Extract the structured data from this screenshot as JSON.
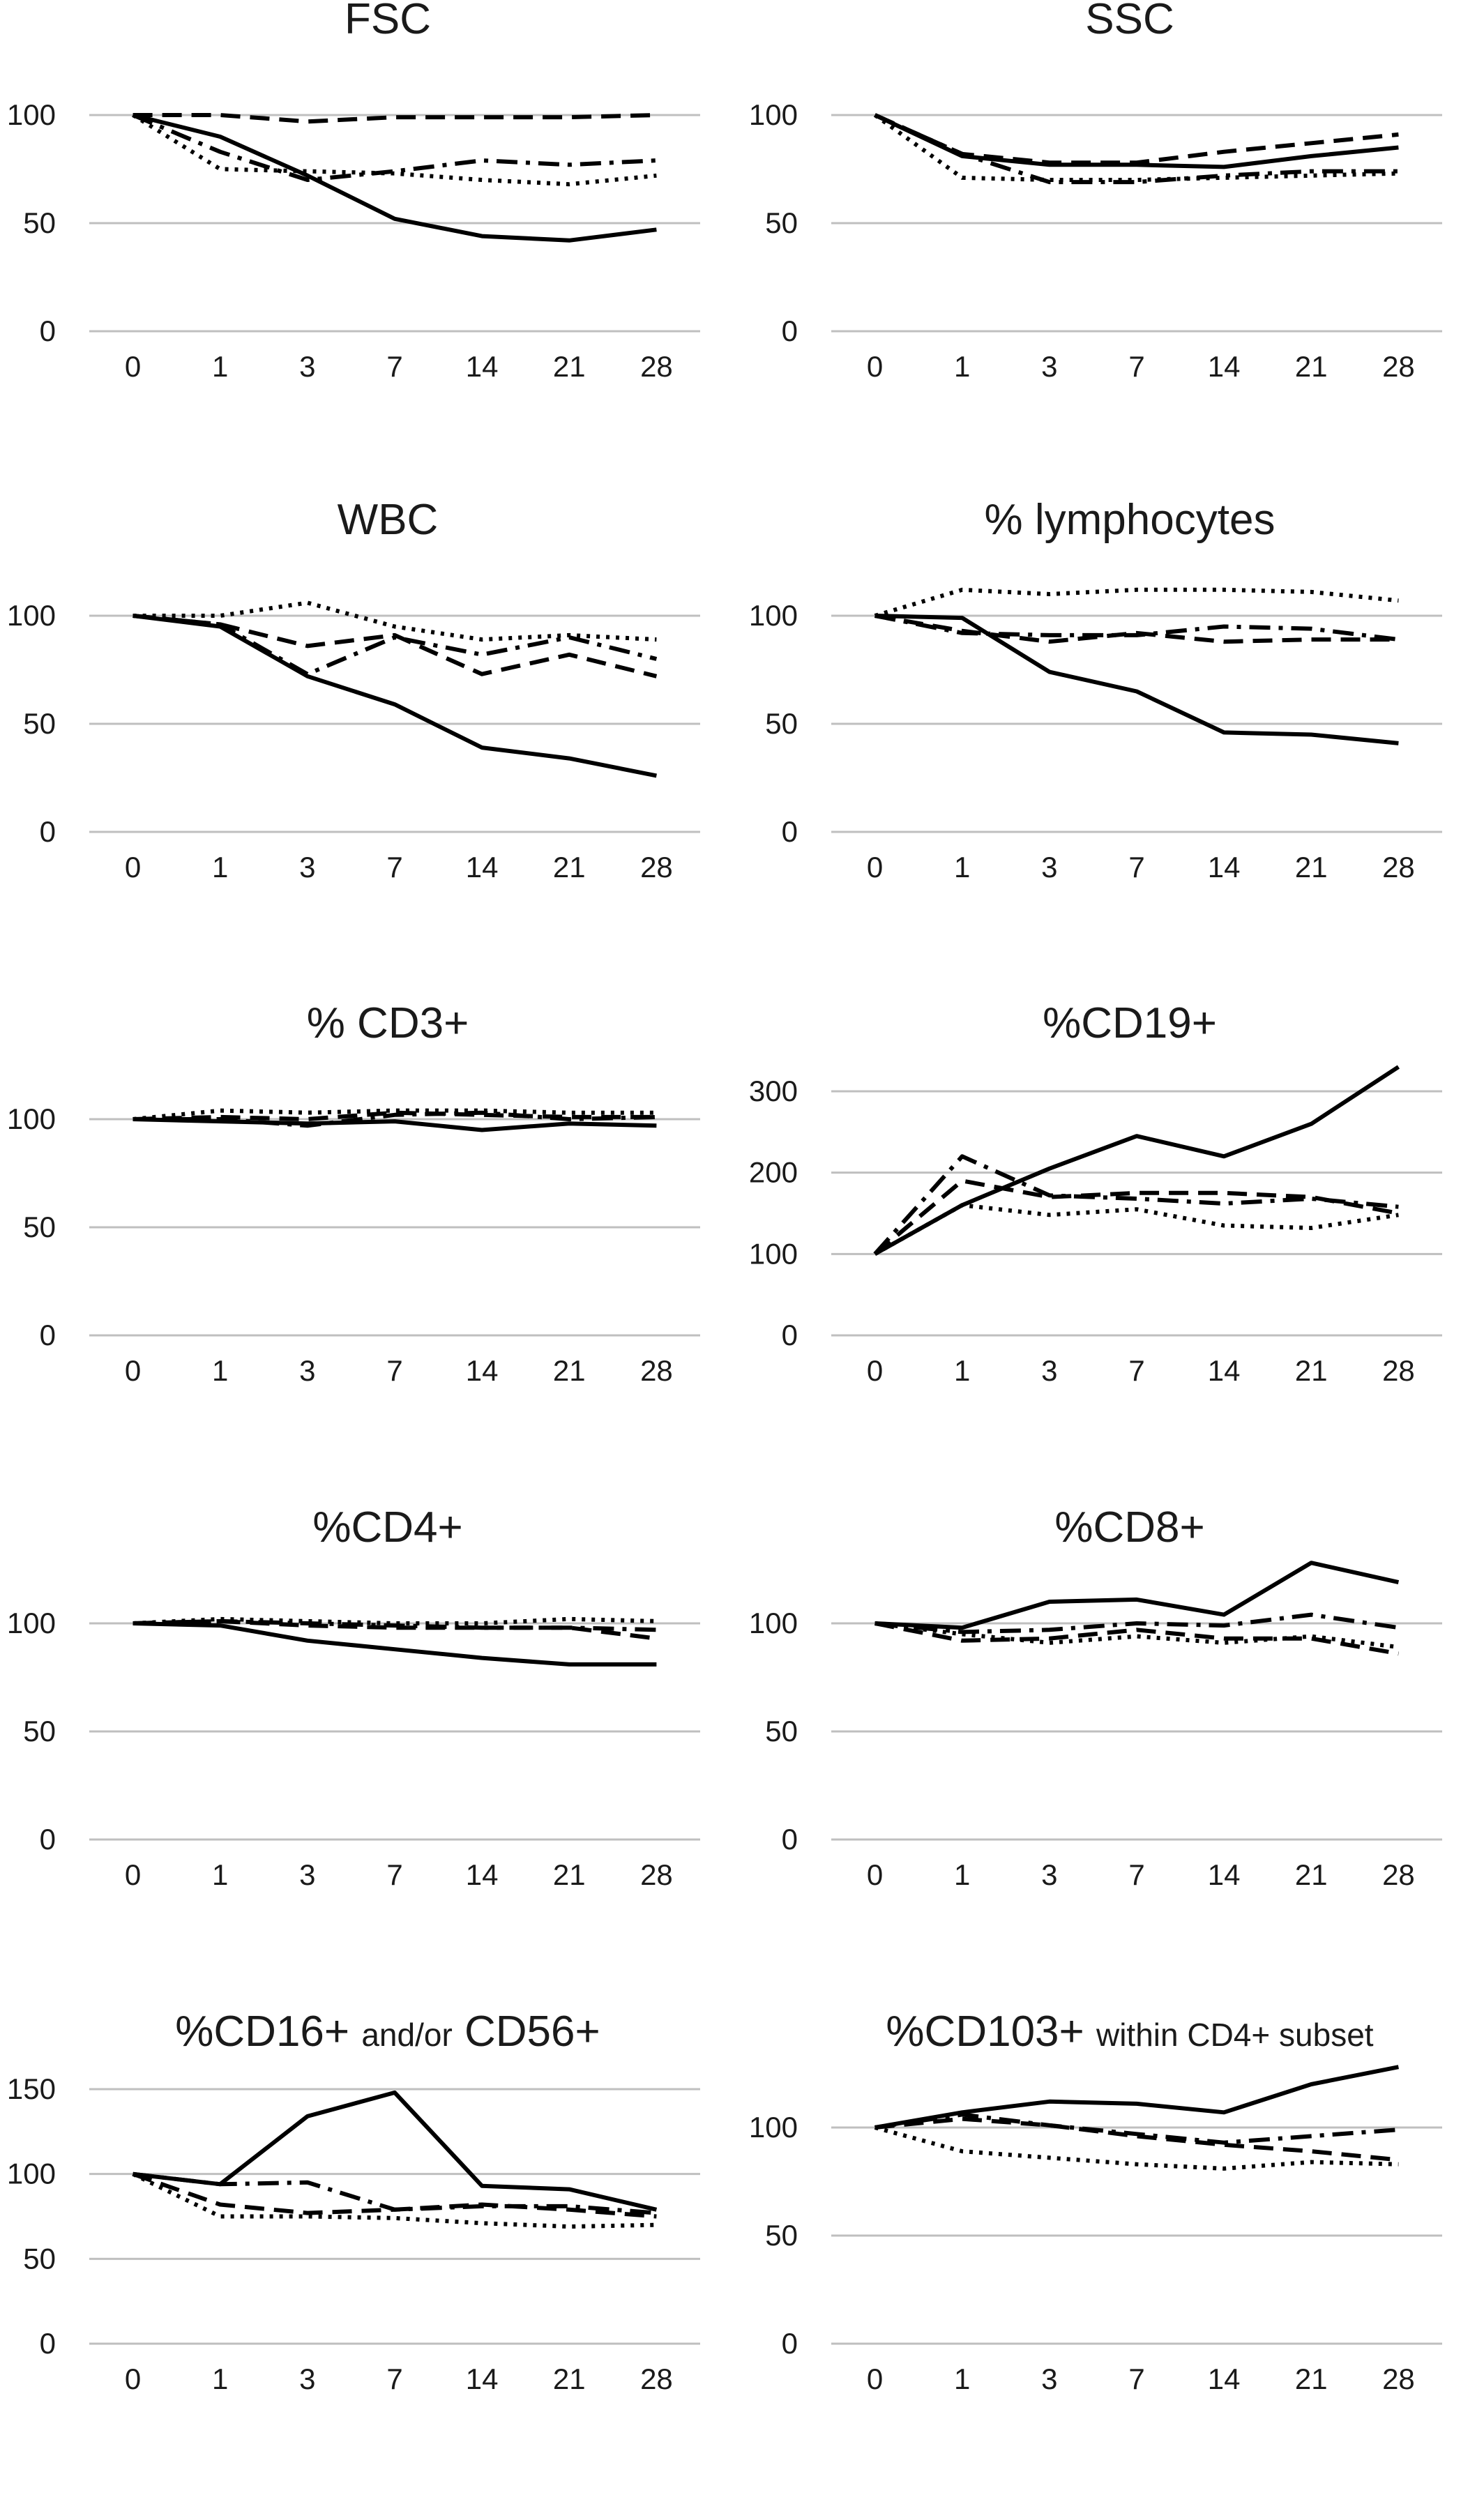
{
  "chart_data": [
    {
      "type": "line",
      "title": "FSC",
      "categories": [
        "0",
        "1",
        "3",
        "7",
        "14",
        "21",
        "28"
      ],
      "ylim": [
        0,
        100
      ],
      "yticks": [
        0,
        50,
        100
      ],
      "grid": true,
      "series": [
        {
          "style": "solid",
          "values": [
            100,
            90,
            72,
            52,
            44,
            42,
            47
          ]
        },
        {
          "style": "dashed",
          "values": [
            100,
            100,
            97,
            99,
            99,
            99,
            100
          ]
        },
        {
          "style": "dashdot",
          "values": [
            100,
            83,
            70,
            74,
            79,
            77,
            79
          ]
        },
        {
          "style": "dotted",
          "values": [
            100,
            75,
            74,
            73,
            70,
            68,
            72
          ]
        }
      ]
    },
    {
      "type": "line",
      "title": "SSC",
      "categories": [
        "0",
        "1",
        "3",
        "7",
        "14",
        "21",
        "28"
      ],
      "ylim": [
        0,
        100
      ],
      "yticks": [
        0,
        50,
        100
      ],
      "grid": true,
      "series": [
        {
          "style": "solid",
          "values": [
            100,
            81,
            77,
            77,
            76,
            81,
            85
          ]
        },
        {
          "style": "dashed",
          "values": [
            100,
            82,
            78,
            78,
            83,
            87,
            91
          ]
        },
        {
          "style": "dashdot",
          "values": [
            100,
            82,
            69,
            69,
            72,
            74,
            74
          ]
        },
        {
          "style": "dotted",
          "values": [
            100,
            71,
            70,
            70,
            71,
            72,
            73
          ]
        }
      ]
    },
    {
      "type": "line",
      "title": "WBC",
      "categories": [
        "0",
        "1",
        "3",
        "7",
        "14",
        "21",
        "28"
      ],
      "ylim": [
        0,
        100
      ],
      "yticks": [
        0,
        50,
        100
      ],
      "grid": true,
      "series": [
        {
          "style": "solid",
          "values": [
            100,
            95,
            72,
            59,
            39,
            34,
            26
          ]
        },
        {
          "style": "dashed",
          "values": [
            100,
            96,
            86,
            91,
            73,
            82,
            72
          ]
        },
        {
          "style": "dashdot",
          "values": [
            100,
            96,
            73,
            90,
            82,
            90,
            80
          ]
        },
        {
          "style": "dotted",
          "values": [
            100,
            100,
            106,
            95,
            89,
            91,
            89
          ]
        }
      ]
    },
    {
      "type": "line",
      "title": "% lymphocytes",
      "categories": [
        "0",
        "1",
        "3",
        "7",
        "14",
        "21",
        "28"
      ],
      "ylim": [
        0,
        100
      ],
      "yticks": [
        0,
        50,
        100
      ],
      "grid": true,
      "series": [
        {
          "style": "solid",
          "values": [
            100,
            99,
            74,
            65,
            46,
            45,
            41
          ]
        },
        {
          "style": "dashed",
          "values": [
            100,
            93,
            88,
            92,
            88,
            89,
            89
          ]
        },
        {
          "style": "dashdot",
          "values": [
            100,
            92,
            91,
            91,
            95,
            94,
            89
          ]
        },
        {
          "style": "dotted",
          "values": [
            100,
            112,
            110,
            112,
            112,
            111,
            107
          ]
        }
      ]
    },
    {
      "type": "line",
      "title": "% CD3+",
      "categories": [
        "0",
        "1",
        "3",
        "7",
        "14",
        "21",
        "28"
      ],
      "ylim": [
        0,
        100
      ],
      "yticks": [
        0,
        50,
        100
      ],
      "grid": true,
      "series": [
        {
          "style": "solid",
          "values": [
            100,
            99,
            98,
            99,
            95,
            98,
            97
          ]
        },
        {
          "style": "dashed",
          "values": [
            100,
            101,
            100,
            103,
            102,
            101,
            101
          ]
        },
        {
          "style": "dashdot",
          "values": [
            100,
            100,
            97,
            102,
            103,
            100,
            101
          ]
        },
        {
          "style": "dotted",
          "values": [
            100,
            104,
            103,
            104,
            104,
            103,
            103
          ]
        }
      ]
    },
    {
      "type": "line",
      "title": "%CD19+",
      "categories": [
        "0",
        "1",
        "3",
        "7",
        "14",
        "21",
        "28"
      ],
      "ylim": [
        0,
        300
      ],
      "yticks": [
        0,
        100,
        200,
        300
      ],
      "grid": true,
      "series": [
        {
          "style": "solid",
          "values": [
            100,
            160,
            205,
            245,
            220,
            260,
            330
          ]
        },
        {
          "style": "dashed",
          "values": [
            100,
            190,
            170,
            175,
            175,
            170,
            150
          ]
        },
        {
          "style": "dashdot",
          "values": [
            100,
            220,
            172,
            168,
            162,
            168,
            158
          ]
        },
        {
          "style": "dotted",
          "values": [
            100,
            160,
            148,
            155,
            135,
            132,
            148
          ]
        }
      ]
    },
    {
      "type": "line",
      "title": "%CD4+",
      "categories": [
        "0",
        "1",
        "3",
        "7",
        "14",
        "21",
        "28"
      ],
      "ylim": [
        0,
        100
      ],
      "yticks": [
        0,
        50,
        100
      ],
      "grid": true,
      "series": [
        {
          "style": "solid",
          "values": [
            100,
            99,
            92,
            88,
            84,
            81,
            81
          ]
        },
        {
          "style": "dashed",
          "values": [
            100,
            101,
            99,
            98,
            98,
            98,
            93
          ]
        },
        {
          "style": "dashdot",
          "values": [
            100,
            101,
            100,
            99,
            98,
            98,
            97
          ]
        },
        {
          "style": "dotted",
          "values": [
            100,
            102,
            101,
            100,
            100,
            102,
            101
          ]
        }
      ]
    },
    {
      "type": "line",
      "title": "%CD8+",
      "categories": [
        "0",
        "1",
        "3",
        "7",
        "14",
        "21",
        "28"
      ],
      "ylim": [
        0,
        100
      ],
      "yticks": [
        0,
        50,
        100
      ],
      "grid": true,
      "series": [
        {
          "style": "solid",
          "values": [
            100,
            98,
            110,
            111,
            104,
            128,
            119
          ]
        },
        {
          "style": "dashed",
          "values": [
            100,
            92,
            93,
            97,
            93,
            93,
            86
          ]
        },
        {
          "style": "dashdot",
          "values": [
            100,
            96,
            97,
            100,
            99,
            104,
            98
          ]
        },
        {
          "style": "dotted",
          "values": [
            100,
            95,
            91,
            94,
            91,
            94,
            89
          ]
        }
      ]
    },
    {
      "type": "line",
      "title": "%CD16+ and/or CD56+",
      "title_parts": [
        {
          "text": "%CD16+ ",
          "small": false
        },
        {
          "text": "and/or",
          "small": true
        },
        {
          "text": " CD56+",
          "small": false
        }
      ],
      "categories": [
        "0",
        "1",
        "3",
        "7",
        "14",
        "21",
        "28"
      ],
      "ylim": [
        0,
        150
      ],
      "yticks": [
        0,
        50,
        100,
        150
      ],
      "grid": true,
      "series": [
        {
          "style": "solid",
          "values": [
            100,
            94,
            134,
            148,
            93,
            91,
            79
          ]
        },
        {
          "style": "dashed",
          "values": [
            100,
            82,
            77,
            79,
            82,
            79,
            75
          ]
        },
        {
          "style": "dashdot",
          "values": [
            100,
            94,
            95,
            79,
            81,
            81,
            77
          ]
        },
        {
          "style": "dotted",
          "values": [
            100,
            75,
            75,
            74,
            71,
            69,
            70
          ]
        }
      ]
    },
    {
      "type": "line",
      "title": "%CD103+ within CD4+ subset",
      "title_parts": [
        {
          "text": "%CD103+ ",
          "small": false
        },
        {
          "text": "within CD4+ subset",
          "small": true
        }
      ],
      "categories": [
        "0",
        "1",
        "3",
        "7",
        "14",
        "21",
        "28"
      ],
      "ylim": [
        0,
        100
      ],
      "yticks": [
        0,
        50,
        100
      ],
      "grid": true,
      "series": [
        {
          "style": "solid",
          "values": [
            100,
            107,
            112,
            111,
            107,
            120,
            128
          ]
        },
        {
          "style": "dashed",
          "values": [
            100,
            104,
            101,
            96,
            92,
            89,
            85
          ]
        },
        {
          "style": "dashdot",
          "values": [
            100,
            106,
            101,
            97,
            93,
            96,
            99
          ]
        },
        {
          "style": "dotted",
          "values": [
            100,
            89,
            86,
            83,
            81,
            84,
            83
          ]
        }
      ]
    }
  ]
}
